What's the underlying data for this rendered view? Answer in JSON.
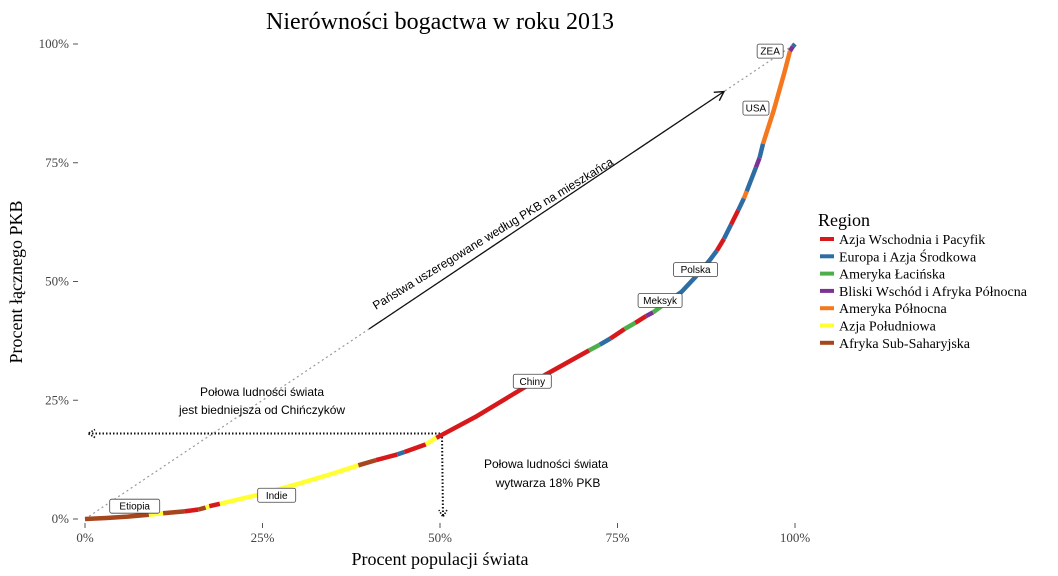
{
  "chart_data": {
    "type": "line",
    "title": "Nierówności bogactwa w roku 2013",
    "xlabel": "Procent populacji świata",
    "ylabel": "Procent łącznego PKB",
    "xlim": [
      0,
      100
    ],
    "ylim": [
      0,
      100
    ],
    "x_ticks": [
      0,
      25,
      50,
      75,
      100
    ],
    "y_ticks": [
      0,
      25,
      50,
      75,
      100
    ],
    "x_tick_labels": [
      "0%",
      "25%",
      "50%",
      "75%",
      "100%"
    ],
    "y_tick_labels": [
      "0%",
      "25%",
      "50%",
      "75%",
      "100%"
    ],
    "grid": false,
    "legend": {
      "title": "Region",
      "position": "right",
      "entries": [
        {
          "label": "Azja Wschodnia i Pacyfik",
          "color": "#D7191C"
        },
        {
          "label": "Europa i Azja Środkowa",
          "color": "#2E6DA4"
        },
        {
          "label": "Ameryka Łacińska",
          "color": "#4DAF4A"
        },
        {
          "label": "Bliski Wschód i Afryka Północna",
          "color": "#7B3294"
        },
        {
          "label": "Ameryka Północna",
          "color": "#F5781E"
        },
        {
          "label": "Azja Południowa",
          "color": "#FFFF33"
        },
        {
          "label": "Afryka Sub-Saharyjska",
          "color": "#A6461C"
        }
      ]
    },
    "segments": [
      {
        "region": 6,
        "x": [
          0,
          3,
          6,
          9
        ],
        "y": [
          0,
          0.2,
          0.5,
          0.9
        ]
      },
      {
        "region": 5,
        "x": [
          9,
          11
        ],
        "y": [
          0.9,
          1.2
        ]
      },
      {
        "region": 6,
        "x": [
          11,
          14
        ],
        "y": [
          1.2,
          1.6
        ]
      },
      {
        "region": 0,
        "x": [
          14,
          16
        ],
        "y": [
          1.6,
          2
        ]
      },
      {
        "region": 6,
        "x": [
          16,
          17
        ],
        "y": [
          2,
          2.4
        ]
      },
      {
        "region": 5,
        "x": [
          17,
          17.5
        ],
        "y": [
          2.4,
          2.7
        ]
      },
      {
        "region": 0,
        "x": [
          17.5,
          19
        ],
        "y": [
          2.7,
          3.2
        ]
      },
      {
        "region": 5,
        "x": [
          19,
          25,
          30,
          35,
          38.5
        ],
        "y": [
          3.2,
          5.3,
          7.4,
          9.6,
          11.3
        ]
      },
      {
        "region": 6,
        "x": [
          38.5,
          41
        ],
        "y": [
          11.3,
          12.4
        ]
      },
      {
        "region": 0,
        "x": [
          41,
          44
        ],
        "y": [
          12.4,
          13.6
        ]
      },
      {
        "region": 1,
        "x": [
          44,
          45
        ],
        "y": [
          13.6,
          14.1
        ]
      },
      {
        "region": 0,
        "x": [
          45,
          48
        ],
        "y": [
          14.1,
          15.7
        ]
      },
      {
        "region": 5,
        "x": [
          48,
          49.5
        ],
        "y": [
          15.7,
          17.1
        ]
      },
      {
        "region": 0,
        "x": [
          49.5,
          55,
          60,
          65,
          71
        ],
        "y": [
          17.1,
          21.5,
          26,
          30.5,
          35.5
        ]
      },
      {
        "region": 2,
        "x": [
          71,
          72.5
        ],
        "y": [
          35.5,
          36.7
        ]
      },
      {
        "region": 1,
        "x": [
          72.5,
          74
        ],
        "y": [
          36.7,
          38
        ]
      },
      {
        "region": 0,
        "x": [
          74,
          76
        ],
        "y": [
          38,
          40
        ]
      },
      {
        "region": 2,
        "x": [
          76,
          77.5
        ],
        "y": [
          40,
          41.3
        ]
      },
      {
        "region": 0,
        "x": [
          77.5,
          79
        ],
        "y": [
          41.3,
          42.7
        ]
      },
      {
        "region": 3,
        "x": [
          79,
          80
        ],
        "y": [
          42.7,
          43.5
        ]
      },
      {
        "region": 2,
        "x": [
          80,
          82
        ],
        "y": [
          43.5,
          45.7
        ]
      },
      {
        "region": 1,
        "x": [
          82,
          84,
          86,
          88,
          89
        ],
        "y": [
          45.7,
          47.8,
          51,
          54.5,
          56.5
        ]
      },
      {
        "region": 0,
        "x": [
          89,
          90
        ],
        "y": [
          56.5,
          59
        ]
      },
      {
        "region": 1,
        "x": [
          90,
          91
        ],
        "y": [
          59,
          62
        ]
      },
      {
        "region": 0,
        "x": [
          91,
          92
        ],
        "y": [
          62,
          65
        ]
      },
      {
        "region": 1,
        "x": [
          92,
          92.8
        ],
        "y": [
          65,
          67.5
        ]
      },
      {
        "region": 4,
        "x": [
          92.8,
          93.2
        ],
        "y": [
          67.5,
          69
        ]
      },
      {
        "region": 1,
        "x": [
          93.2,
          94.5
        ],
        "y": [
          69,
          74
        ]
      },
      {
        "region": 3,
        "x": [
          94.5,
          95
        ],
        "y": [
          74,
          76
        ]
      },
      {
        "region": 1,
        "x": [
          95,
          95.5
        ],
        "y": [
          76,
          79
        ]
      },
      {
        "region": 4,
        "x": [
          95.5,
          97,
          98.5,
          99.3
        ],
        "y": [
          79,
          86,
          94,
          98.5
        ]
      },
      {
        "region": 3,
        "x": [
          99.3,
          99.7
        ],
        "y": [
          98.5,
          99.5
        ]
      },
      {
        "region": 1,
        "x": [
          99.7,
          100
        ],
        "y": [
          99.5,
          100
        ]
      }
    ],
    "reference_line": {
      "x": [
        0,
        100
      ],
      "y": [
        0,
        100
      ],
      "style": "dotted",
      "color": "#999999"
    },
    "country_labels": [
      {
        "text": "Etiopia",
        "x": 7,
        "y": 2.7
      },
      {
        "text": "Indie",
        "x": 27,
        "y": 5
      },
      {
        "text": "Chiny",
        "x": 63,
        "y": 29
      },
      {
        "text": "Meksyk",
        "x": 81,
        "y": 46
      },
      {
        "text": "Polska",
        "x": 86,
        "y": 52.5
      },
      {
        "text": "USA",
        "x": 94.5,
        "y": 86.5
      },
      {
        "text": "ZEA",
        "x": 96.5,
        "y": 98.5
      }
    ],
    "annotations": {
      "arrow_label": "Państwa uszeregowane według PKB na mieszkańca",
      "left_lines": [
        "Połowa ludności świata",
        "jest biedniejsza od Chińczyków"
      ],
      "right_lines": [
        "Połowa ludności świata",
        "wytwarza 18% PKB"
      ]
    },
    "half_point": {
      "x": 50,
      "y": 18
    }
  }
}
